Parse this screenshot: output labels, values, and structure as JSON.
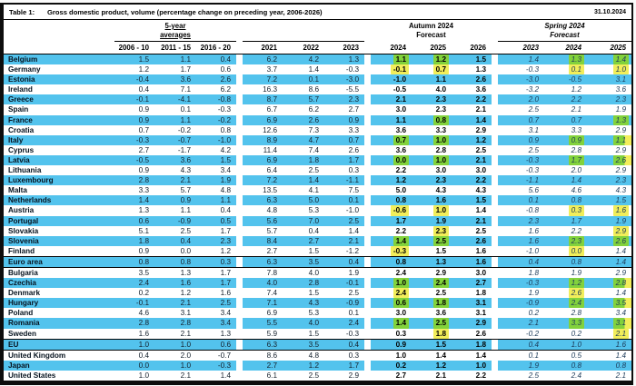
{
  "header": {
    "table_label": "Table 1:",
    "title": "Gross domestic product, volume (percentage change on preceding year, 2006-2026)",
    "date": "31.10.2024"
  },
  "colors": {
    "row_blue": "#53c3ed",
    "highlight_green": "#82d23c",
    "highlight_yellow": "#f2ee5a"
  },
  "columns": {
    "group_a": {
      "label_line1": "5-year",
      "label_line2": "averages",
      "years": [
        "2006 - 10",
        "2011 - 15",
        "2016 - 20"
      ]
    },
    "group_b": {
      "years": [
        "2021",
        "2022",
        "2023"
      ]
    },
    "group_c": {
      "label_line1": "Autumn 2024",
      "label_line2": "Forecast",
      "years": [
        "2024",
        "2025",
        "2026"
      ]
    },
    "group_d": {
      "label_line1": "Spring 2024",
      "label_line2": "Forecast",
      "years": [
        "2023",
        "2024",
        "2025"
      ]
    }
  },
  "table": {
    "rows": [
      {
        "name": "Belgium",
        "values": [
          "1.5",
          "1.1",
          "0.4",
          "6.2",
          "4.2",
          "1.3",
          "1.1",
          "1.2",
          "1.5",
          "1.4",
          "1.3",
          "1.4"
        ],
        "hl": {
          "6": "g",
          "7": "g",
          "10": "g",
          "11": "g"
        }
      },
      {
        "name": "Germany",
        "values": [
          "1.2",
          "1.7",
          "0.6",
          "3.7",
          "1.4",
          "-0.3",
          "-0.1",
          "0.7",
          "1.3",
          "-0.3",
          "0.1",
          "1.0"
        ],
        "hl": {
          "6": "y",
          "7": "y",
          "10": "y",
          "11": "y"
        }
      },
      {
        "name": "Estonia",
        "values": [
          "-0.4",
          "3.6",
          "2.6",
          "7.2",
          "0.1",
          "-3.0",
          "-1.0",
          "1.1",
          "2.6",
          "-3.0",
          "-0.5",
          "3.1"
        ]
      },
      {
        "name": "Ireland",
        "values": [
          "0.4",
          "7.1",
          "6.2",
          "16.3",
          "8.6",
          "-5.5",
          "-0.5",
          "4.0",
          "3.6",
          "-3.2",
          "1.2",
          "3.6"
        ]
      },
      {
        "name": "Greece",
        "values": [
          "-0.1",
          "-4.1",
          "-0.8",
          "8.7",
          "5.7",
          "2.3",
          "2.1",
          "2.3",
          "2.2",
          "2.0",
          "2.2",
          "2.3"
        ]
      },
      {
        "name": "Spain",
        "values": [
          "0.9",
          "0.1",
          "-0.3",
          "6.7",
          "6.2",
          "2.7",
          "3.0",
          "2.3",
          "2.1",
          "2.5",
          "2.1",
          "1.9"
        ]
      },
      {
        "name": "France",
        "values": [
          "0.9",
          "1.1",
          "-0.2",
          "6.9",
          "2.6",
          "0.9",
          "1.1",
          "0.8",
          "1.4",
          "0.7",
          "0.7",
          "1.3"
        ],
        "hl": {
          "7": "g",
          "11": "g"
        }
      },
      {
        "name": "Croatia",
        "values": [
          "0.7",
          "-0.2",
          "0.8",
          "12.6",
          "7.3",
          "3.3",
          "3.6",
          "3.3",
          "2.9",
          "3.1",
          "3.3",
          "2.9"
        ]
      },
      {
        "name": "Italy",
        "values": [
          "-0.3",
          "-0.7",
          "-1.0",
          "8.9",
          "4.7",
          "0.7",
          "0.7",
          "1.0",
          "1.2",
          "0.9",
          "0.9",
          "1.1"
        ],
        "hl": {
          "6": "g",
          "7": "g",
          "10": "g",
          "11": "gy"
        }
      },
      {
        "name": "Cyprus",
        "values": [
          "2.7",
          "-1.7",
          "4.2",
          "11.4",
          "7.4",
          "2.6",
          "3.6",
          "2.8",
          "2.5",
          "2.5",
          "2.8",
          "2.9"
        ]
      },
      {
        "name": "Latvia",
        "values": [
          "-0.5",
          "3.6",
          "1.5",
          "6.9",
          "1.8",
          "1.7",
          "0.0",
          "1.0",
          "2.1",
          "-0.3",
          "1.7",
          "2.6"
        ],
        "hl": {
          "6": "g",
          "7": "g",
          "10": "g",
          "11": "gy"
        }
      },
      {
        "name": "Lithuania",
        "values": [
          "0.9",
          "4.3",
          "3.4",
          "6.4",
          "2.5",
          "0.3",
          "2.2",
          "3.0",
          "3.0",
          "-0.3",
          "2.0",
          "2.9"
        ]
      },
      {
        "name": "Luxembourg",
        "values": [
          "2.8",
          "2.1",
          "1.9",
          "7.2",
          "1.4",
          "-1.1",
          "1.2",
          "2.3",
          "2.2",
          "-1.1",
          "1.4",
          "2.3"
        ]
      },
      {
        "name": "Malta",
        "values": [
          "3.3",
          "5.7",
          "4.8",
          "13.5",
          "4.1",
          "7.5",
          "5.0",
          "4.3",
          "4.3",
          "5.6",
          "4.6",
          "4.3"
        ]
      },
      {
        "name": "Netherlands",
        "values": [
          "1.4",
          "0.9",
          "1.1",
          "6.3",
          "5.0",
          "0.1",
          "0.8",
          "1.6",
          "1.5",
          "0.1",
          "0.8",
          "1.5"
        ]
      },
      {
        "name": "Austria",
        "values": [
          "1.3",
          "1.1",
          "0.4",
          "4.8",
          "5.3",
          "-1.0",
          "-0.6",
          "1.0",
          "1.4",
          "-0.8",
          "0.3",
          "1.6"
        ],
        "hl": {
          "6": "y",
          "7": "y",
          "10": "y",
          "11": "y"
        }
      },
      {
        "name": "Portugal",
        "values": [
          "0.6",
          "-0.9",
          "0.5",
          "5.6",
          "7.0",
          "2.5",
          "1.7",
          "1.9",
          "2.1",
          "2.3",
          "1.7",
          "1.9"
        ]
      },
      {
        "name": "Slovakia",
        "values": [
          "5.1",
          "2.5",
          "1.7",
          "5.7",
          "0.4",
          "1.4",
          "2.2",
          "2.3",
          "2.5",
          "1.6",
          "2.2",
          "2.9"
        ],
        "hl": {
          "7": "y",
          "11": "y"
        }
      },
      {
        "name": "Slovenia",
        "values": [
          "1.8",
          "0.4",
          "2.3",
          "8.4",
          "2.7",
          "2.1",
          "1.4",
          "2.5",
          "2.6",
          "1.6",
          "2.3",
          "2.6"
        ],
        "hl": {
          "6": "g",
          "7": "g",
          "10": "g",
          "11": "g"
        }
      },
      {
        "name": "Finland",
        "values": [
          "0.9",
          "0.0",
          "1.2",
          "2.7",
          "1.5",
          "-1.2",
          "-0.3",
          "1.5",
          "1.6",
          "-1.0",
          "0.0",
          "1.4"
        ],
        "hl": {
          "6": "y",
          "10": "y"
        }
      },
      {
        "name": "Euro area",
        "divider": true,
        "values": [
          "0.8",
          "0.8",
          "0.3",
          "6.3",
          "3.5",
          "0.4",
          "0.8",
          "1.3",
          "1.6",
          "0.4",
          "0.8",
          "1.4"
        ]
      },
      {
        "name": "Bulgaria",
        "values": [
          "3.5",
          "1.3",
          "1.7",
          "7.8",
          "4.0",
          "1.9",
          "2.4",
          "2.9",
          "3.0",
          "1.8",
          "1.9",
          "2.9"
        ]
      },
      {
        "name": "Czechia",
        "values": [
          "2.4",
          "1.6",
          "1.7",
          "4.0",
          "2.8",
          "-0.1",
          "1.0",
          "2.4",
          "2.7",
          "-0.3",
          "1.2",
          "2.8"
        ],
        "hl": {
          "6": "g",
          "7": "g",
          "10": "g",
          "11": "gy"
        }
      },
      {
        "name": "Denmark",
        "values": [
          "0.2",
          "1.2",
          "1.6",
          "7.4",
          "1.5",
          "2.5",
          "2.4",
          "2.5",
          "1.8",
          "1.9",
          "2.6",
          "1.4"
        ],
        "hl": {
          "6": "y",
          "10": "y"
        }
      },
      {
        "name": "Hungary",
        "values": [
          "-0.1",
          "2.1",
          "2.5",
          "7.1",
          "4.3",
          "-0.9",
          "0.6",
          "1.8",
          "3.1",
          "-0.9",
          "2.4",
          "3.5"
        ],
        "hl": {
          "6": "g",
          "7": "g",
          "10": "g",
          "11": "gy"
        }
      },
      {
        "name": "Poland",
        "values": [
          "4.6",
          "3.1",
          "3.4",
          "6.9",
          "5.3",
          "0.1",
          "3.0",
          "3.6",
          "3.1",
          "0.2",
          "2.8",
          "3.4"
        ]
      },
      {
        "name": "Romania",
        "values": [
          "2.8",
          "2.8",
          "3.4",
          "5.5",
          "4.0",
          "2.4",
          "1.4",
          "2.5",
          "2.9",
          "2.1",
          "3.3",
          "3.1"
        ],
        "hl": {
          "6": "g",
          "7": "g",
          "10": "g",
          "11": "gy"
        }
      },
      {
        "name": "Sweden",
        "values": [
          "1.6",
          "2.1",
          "1.3",
          "5.9",
          "1.5",
          "-0.3",
          "0.3",
          "1.8",
          "2.6",
          "-0.2",
          "0.2",
          "2.1"
        ],
        "hl": {
          "7": "y",
          "11": "y"
        }
      },
      {
        "name": "EU",
        "divider": true,
        "values": [
          "1.0",
          "1.0",
          "0.6",
          "6.3",
          "3.5",
          "0.4",
          "0.9",
          "1.5",
          "1.8",
          "0.4",
          "1.0",
          "1.6"
        ]
      },
      {
        "name": "United Kingdom",
        "values": [
          "0.4",
          "2.0",
          "-0.7",
          "8.6",
          "4.8",
          "0.3",
          "1.0",
          "1.4",
          "1.4",
          "0.1",
          "0.5",
          "1.4"
        ]
      },
      {
        "name": "Japan",
        "values": [
          "0.0",
          "1.0",
          "-0.3",
          "2.7",
          "1.2",
          "1.7",
          "0.2",
          "1.2",
          "1.0",
          "1.9",
          "0.8",
          "0.8"
        ]
      },
      {
        "name": "United States",
        "values": [
          "1.0",
          "2.1",
          "1.4",
          "6.1",
          "2.5",
          "2.9",
          "2.7",
          "2.1",
          "2.2",
          "2.5",
          "2.4",
          "2.1"
        ]
      }
    ]
  }
}
